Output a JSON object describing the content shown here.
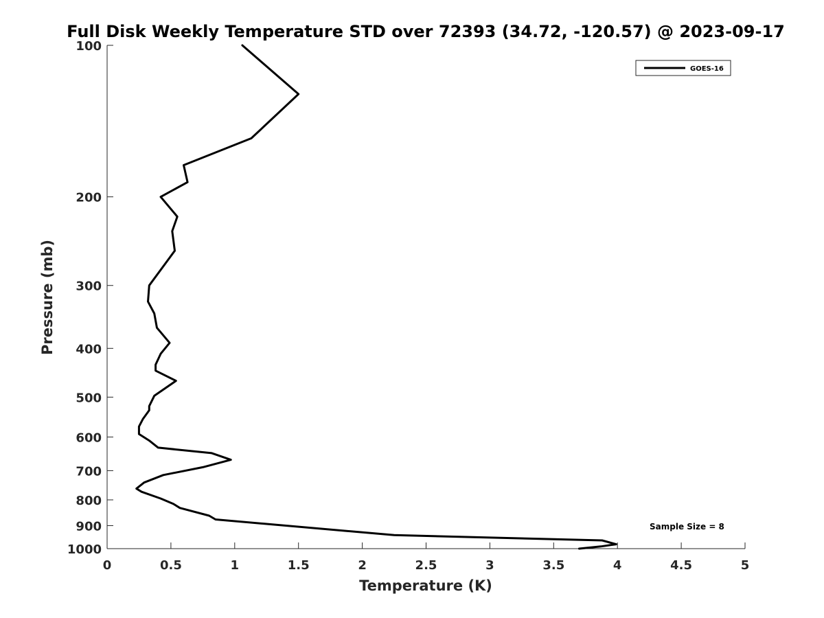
{
  "chart_data": {
    "type": "line",
    "title": "Full Disk Weekly Temperature STD over 72393 (34.72, -120.57) @ 2023-09-17",
    "xlabel": "Temperature (K)",
    "ylabel": "Pressure (mb)",
    "xlim": [
      0,
      5
    ],
    "ylim": [
      100,
      1000
    ],
    "y_scale": "log",
    "y_reversed": true,
    "grid": false,
    "legend_position": "top-right",
    "x_ticks": [
      "0",
      "0.5",
      "1",
      "1.5",
      "2",
      "2.5",
      "3",
      "3.5",
      "4",
      "4.5",
      "5"
    ],
    "y_ticks": [
      "100",
      "200",
      "300",
      "400",
      "500",
      "600",
      "700",
      "800",
      "900",
      "1000"
    ],
    "series": [
      {
        "name": "GOES-16",
        "color": "#000000",
        "points": [
          [
            1.06,
            100
          ],
          [
            1.5,
            125
          ],
          [
            1.13,
            153
          ],
          [
            0.6,
            173
          ],
          [
            0.63,
            187
          ],
          [
            0.42,
            200
          ],
          [
            0.55,
            219
          ],
          [
            0.51,
            234
          ],
          [
            0.53,
            256
          ],
          [
            0.33,
            300
          ],
          [
            0.32,
            323
          ],
          [
            0.37,
            341
          ],
          [
            0.39,
            364
          ],
          [
            0.49,
            390
          ],
          [
            0.42,
            410
          ],
          [
            0.38,
            431
          ],
          [
            0.38,
            443
          ],
          [
            0.54,
            464
          ],
          [
            0.37,
            497
          ],
          [
            0.33,
            521
          ],
          [
            0.33,
            531
          ],
          [
            0.28,
            553
          ],
          [
            0.25,
            572
          ],
          [
            0.25,
            592
          ],
          [
            0.33,
            610
          ],
          [
            0.4,
            630
          ],
          [
            0.82,
            646
          ],
          [
            0.97,
            666
          ],
          [
            0.75,
            689
          ],
          [
            0.44,
            714
          ],
          [
            0.29,
            739
          ],
          [
            0.23,
            760
          ],
          [
            0.27,
            771
          ],
          [
            0.42,
            795
          ],
          [
            0.52,
            815
          ],
          [
            0.57,
            830
          ],
          [
            0.8,
            860
          ],
          [
            0.85,
            875
          ],
          [
            2.25,
            940
          ],
          [
            3.88,
            963
          ],
          [
            3.99,
            980
          ],
          [
            3.87,
            990
          ],
          [
            3.7,
            1000
          ]
        ]
      }
    ],
    "annotations": [
      "Sample Size = 8"
    ]
  }
}
